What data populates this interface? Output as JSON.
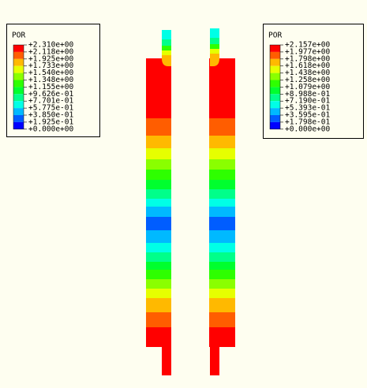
{
  "legends": [
    {
      "title": "POR",
      "labels": [
        "+2.310e+00",
        "+2.118e+00",
        "+1.925e+00",
        "+1.733e+00",
        "+1.540e+00",
        "+1.348e+00",
        "+1.155e+00",
        "+9.626e-01",
        "+7.701e-01",
        "+5.775e-01",
        "+3.850e-01",
        "+1.925e-01",
        "+0.000e+00"
      ]
    },
    {
      "title": "POR",
      "labels": [
        "+2.157e+00",
        "+1.977e+00",
        "+1.798e+00",
        "+1.618e+00",
        "+1.438e+00",
        "+1.258e+00",
        "+1.079e+00",
        "+8.988e-01",
        "+7.190e-01",
        "+5.393e-01",
        "+3.595e-01",
        "+1.798e-01",
        "+0.000e+00"
      ]
    }
  ],
  "colors": [
    "#ff0000",
    "#ff5d00",
    "#ffb900",
    "#e6ff00",
    "#8aff00",
    "#2eff00",
    "#00ff2e",
    "#00ff8a",
    "#00ffe6",
    "#00b9ff",
    "#005dff",
    "#0000ff"
  ]
}
